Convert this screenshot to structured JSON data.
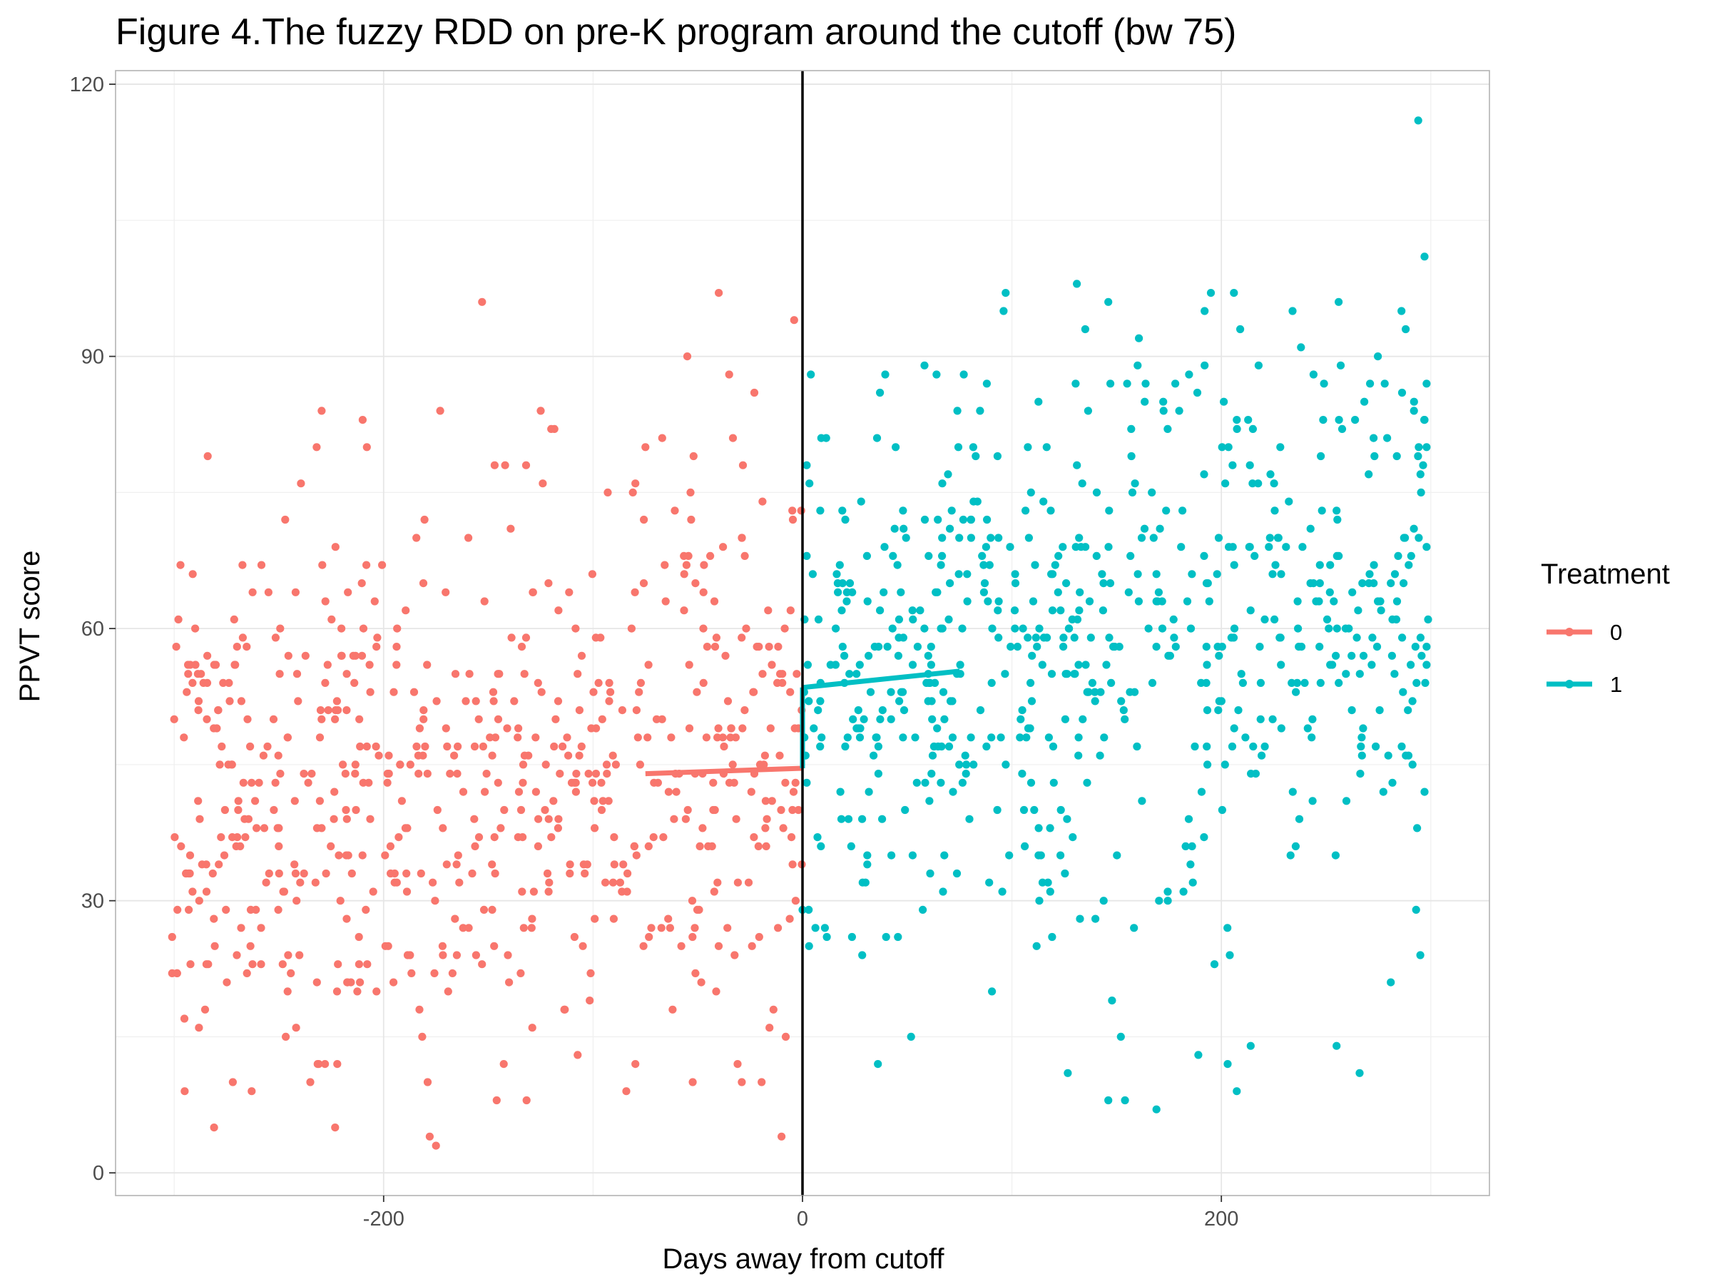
{
  "chart_data": {
    "type": "scatter",
    "title": "Figure 4.The fuzzy RDD on pre-K program around the cutoff (bw 75)",
    "xlabel": "Days away from cutoff",
    "ylabel": "PPVT score",
    "xlim": [
      -328,
      328
    ],
    "ylim": [
      -2.5,
      121.5
    ],
    "x_ticks": [
      -200,
      0,
      200
    ],
    "x_tick_labels": [
      "-200",
      "0",
      "200"
    ],
    "y_ticks": [
      0,
      30,
      60,
      90,
      120
    ],
    "y_tick_labels": [
      "0",
      "30",
      "60",
      "90",
      "120"
    ],
    "x_minor": [
      -300,
      -100,
      100,
      300
    ],
    "y_minor": [
      15,
      45,
      75,
      105
    ],
    "grid": true,
    "cutoff_line": {
      "x": 0,
      "color": "#000000"
    },
    "legend": {
      "title": "Treatment",
      "position": "right"
    },
    "series": [
      {
        "name": "0",
        "color": "#F8766D",
        "range": [
          -300,
          0
        ],
        "fit": {
          "x": [
            -75,
            0
          ],
          "y": [
            44.0,
            44.6
          ]
        },
        "highlight_points": [
          [
            -153,
            96
          ],
          [
            -40,
            97
          ],
          [
            -4,
            94
          ],
          [
            -55,
            90
          ],
          [
            -35,
            88
          ],
          [
            -23,
            86
          ],
          [
            -173,
            84
          ],
          [
            -125,
            84
          ],
          [
            -120,
            82
          ],
          [
            -208,
            80
          ],
          [
            -284,
            79
          ],
          [
            -232,
            80
          ],
          [
            -52,
            79
          ],
          [
            -75,
            80
          ],
          [
            -67,
            81
          ],
          [
            -210,
            83
          ],
          [
            -93,
            75
          ],
          [
            -81,
            75
          ],
          [
            -142,
            78
          ],
          [
            -132,
            78
          ],
          [
            -124,
            76
          ],
          [
            -247,
            72
          ],
          [
            -175,
            3
          ],
          [
            -178,
            4
          ],
          [
            -10,
            4
          ],
          [
            -295,
            9
          ],
          [
            -263,
            9
          ],
          [
            -272,
            10
          ],
          [
            -235,
            10
          ],
          [
            -179,
            10
          ],
          [
            -146,
            8
          ],
          [
            -29,
            10
          ],
          [
            -31,
            12
          ],
          [
            -231,
            12
          ],
          [
            -228,
            12
          ],
          [
            -301,
            22
          ],
          [
            -301,
            26
          ],
          [
            -300,
            50
          ],
          [
            -299,
            58
          ],
          [
            -298,
            61
          ],
          [
            -297,
            67
          ],
          [
            -8,
            15
          ]
        ]
      },
      {
        "name": "1",
        "color": "#00BFC4",
        "range": [
          0,
          300
        ],
        "fit": {
          "x": [
            0,
            75
          ],
          "y": [
            53.5,
            55.3
          ]
        },
        "highlight_points": [
          [
            294,
            116
          ],
          [
            297,
            101
          ],
          [
            131,
            98
          ],
          [
            97,
            97
          ],
          [
            195,
            97
          ],
          [
            206,
            97
          ],
          [
            96,
            95
          ],
          [
            192,
            95
          ],
          [
            234,
            95
          ],
          [
            256,
            96
          ],
          [
            286,
            95
          ],
          [
            288,
            93
          ],
          [
            146,
            96
          ],
          [
            135,
            93
          ],
          [
            209,
            93
          ],
          [
            238,
            91
          ],
          [
            160,
            89
          ],
          [
            192,
            89
          ],
          [
            257,
            89
          ],
          [
            4,
            88
          ],
          [
            64,
            88
          ],
          [
            77,
            88
          ],
          [
            88,
            87
          ],
          [
            155,
            87
          ],
          [
            178,
            87
          ],
          [
            244,
            88
          ],
          [
            271,
            87
          ],
          [
            278,
            87
          ],
          [
            298,
            87
          ],
          [
            37,
            86
          ],
          [
            249,
            87
          ],
          [
            154,
            8
          ],
          [
            146,
            8
          ],
          [
            169,
            7
          ],
          [
            189,
            13
          ],
          [
            214,
            14
          ],
          [
            203,
            12
          ],
          [
            152,
            15
          ],
          [
            255,
            14
          ],
          [
            266,
            11
          ],
          [
            36,
            12
          ],
          [
            295,
            24
          ],
          [
            293,
            29
          ],
          [
            297,
            42
          ],
          [
            298,
            56
          ],
          [
            298,
            58
          ],
          [
            298,
            69
          ],
          [
            298,
            80
          ],
          [
            297,
            83
          ],
          [
            292,
            85
          ],
          [
            0,
            29
          ],
          [
            2,
            43
          ],
          [
            3,
            52
          ],
          [
            1,
            61
          ],
          [
            2,
            68
          ],
          [
            2,
            78
          ]
        ]
      }
    ]
  }
}
